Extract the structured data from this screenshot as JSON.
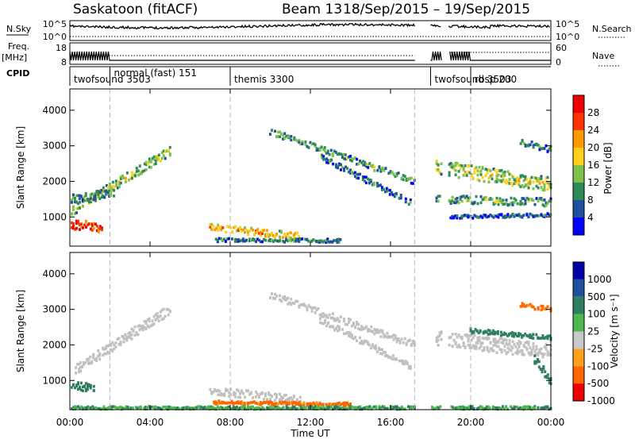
{
  "header": {
    "station": "Saskatoon (fitACF)",
    "beam": "Beam 13",
    "dates": "18/Sep/2015 – 19/Sep/2015"
  },
  "labels": {
    "nsky": "N.Sky",
    "nsky_ticks": [
      "10^5",
      "10^0"
    ],
    "nsearch": "N.Search",
    "nsearch_ticks": [
      "10^5",
      "10^0"
    ],
    "freq": "Freq.",
    "freq_unit": "[MHz]",
    "freq_ticks": [
      "18",
      "8"
    ],
    "nave": "Nave",
    "nave_ticks": [
      "60",
      "0"
    ],
    "cpid": "CPID",
    "xlabel": "Time UT"
  },
  "cpid_modes": [
    {
      "name": "twofsound 3503"
    },
    {
      "name": "normal (fast) 151"
    },
    {
      "name": "themis 3300"
    },
    {
      "name": "twofsound 3503"
    },
    {
      "name": "rbsp 200"
    }
  ],
  "colors": {
    "power_scale": [
      "#0000ff",
      "#1f4f9f",
      "#2e8b57",
      "#7fc04a",
      "#ffd11a",
      "#ff9900",
      "#ff3300",
      "#ee0000"
    ],
    "velocity_scale": [
      "#0000aa",
      "#1f4f9f",
      "#2f7f5f",
      "#4db84d",
      "#c8c8c8",
      "#ff9f1a",
      "#ff6600",
      "#ee0000"
    ],
    "ground_scatter": "#c0c0c0"
  },
  "chart_data": [
    {
      "type": "heatmap",
      "title": "Power",
      "xlabel": "Time UT",
      "ylabel": "Slant Range [km]",
      "x_ticks": [
        "00:00",
        "04:00",
        "08:00",
        "12:00",
        "16:00",
        "20:00",
        "00:00"
      ],
      "y_ticks": [
        "1000",
        "2000",
        "3000",
        "4000"
      ],
      "xlim_hours": [
        0,
        24
      ],
      "ylim_km": [
        180,
        4600
      ],
      "colorbar_label": "Power [dB]",
      "colorbar_ticks": [
        "4",
        "8",
        "12",
        "16",
        "20",
        "24",
        "28"
      ],
      "colorbar_range": [
        0,
        30
      ],
      "bands": [
        {
          "t0": 0.1,
          "t1": 5.0,
          "r0": 1150,
          "r1": 2850,
          "w": 170,
          "v": 15
        },
        {
          "t0": 0.1,
          "t1": 1.6,
          "r0": 800,
          "r1": 700,
          "w": 170,
          "v": 28
        },
        {
          "t0": 0.1,
          "t1": 2.2,
          "r0": 1500,
          "r1": 1700,
          "w": 150,
          "v": 11
        },
        {
          "t0": 7.0,
          "t1": 11.5,
          "r0": 700,
          "r1": 450,
          "w": 120,
          "v": 20
        },
        {
          "t0": 7.3,
          "t1": 13.5,
          "r0": 350,
          "r1": 330,
          "w": 60,
          "v": 10
        },
        {
          "t0": 10.0,
          "t1": 17.2,
          "r0": 3400,
          "r1": 2000,
          "w": 110,
          "v": 12
        },
        {
          "t0": 12.5,
          "t1": 17.0,
          "r0": 2700,
          "r1": 1400,
          "w": 100,
          "v": 9
        },
        {
          "t0": 18.3,
          "t1": 24.0,
          "r0": 2400,
          "r1": 1900,
          "w": 250,
          "v": 16
        },
        {
          "t0": 18.3,
          "t1": 24.0,
          "r0": 1500,
          "r1": 1400,
          "w": 140,
          "v": 12
        },
        {
          "t0": 19.0,
          "t1": 24.0,
          "r0": 1000,
          "r1": 1050,
          "w": 60,
          "v": 8
        },
        {
          "t0": 22.5,
          "t1": 24.0,
          "r0": 3100,
          "r1": 2900,
          "w": 110,
          "v": 10
        }
      ]
    },
    {
      "type": "heatmap",
      "title": "Velocity",
      "xlabel": "Time UT",
      "ylabel": "Slant Range [km]",
      "x_ticks": [
        "00:00",
        "04:00",
        "08:00",
        "12:00",
        "16:00",
        "20:00",
        "00:00"
      ],
      "y_ticks": [
        "1000",
        "2000",
        "3000",
        "4000"
      ],
      "xlim_hours": [
        0,
        24
      ],
      "ylim_km": [
        180,
        4600
      ],
      "colorbar_label": "Velocity [m s⁻¹]",
      "colorbar_ticks": [
        "1000",
        "500",
        "100",
        "25",
        "-25",
        "-100",
        "-500",
        "-1000"
      ],
      "colorbar_range": [
        -1000,
        1000
      ],
      "bands": [
        {
          "t0": 0.3,
          "t1": 5.0,
          "r0": 1300,
          "r1": 3000,
          "w": 180,
          "v": 0,
          "g": 1
        },
        {
          "t0": 0.1,
          "t1": 1.2,
          "r0": 850,
          "r1": 800,
          "w": 150,
          "v": 120
        },
        {
          "t0": 7.0,
          "t1": 11.5,
          "r0": 700,
          "r1": 480,
          "w": 130,
          "v": 0,
          "g": 1
        },
        {
          "t0": 7.2,
          "t1": 14.0,
          "r0": 380,
          "r1": 330,
          "w": 60,
          "v": -150
        },
        {
          "t0": 0.1,
          "t1": 24.0,
          "r0": 230,
          "r1": 230,
          "w": 50,
          "v": 60
        },
        {
          "t0": 10.0,
          "t1": 17.2,
          "r0": 3400,
          "r1": 2000,
          "w": 120,
          "v": 0,
          "g": 1
        },
        {
          "t0": 12.5,
          "t1": 17.0,
          "r0": 2700,
          "r1": 1400,
          "w": 100,
          "v": 0,
          "g": 1
        },
        {
          "t0": 18.3,
          "t1": 24.0,
          "r0": 2200,
          "r1": 1800,
          "w": 260,
          "v": 0,
          "g": 1
        },
        {
          "t0": 20.0,
          "t1": 24.0,
          "r0": 2400,
          "r1": 2200,
          "w": 80,
          "v": 200
        },
        {
          "t0": 23.2,
          "t1": 24.0,
          "r0": 1600,
          "r1": 1000,
          "w": 150,
          "v": 150
        },
        {
          "t0": 22.5,
          "t1": 24.0,
          "r0": 3100,
          "r1": 3000,
          "w": 90,
          "v": -150
        }
      ]
    }
  ]
}
